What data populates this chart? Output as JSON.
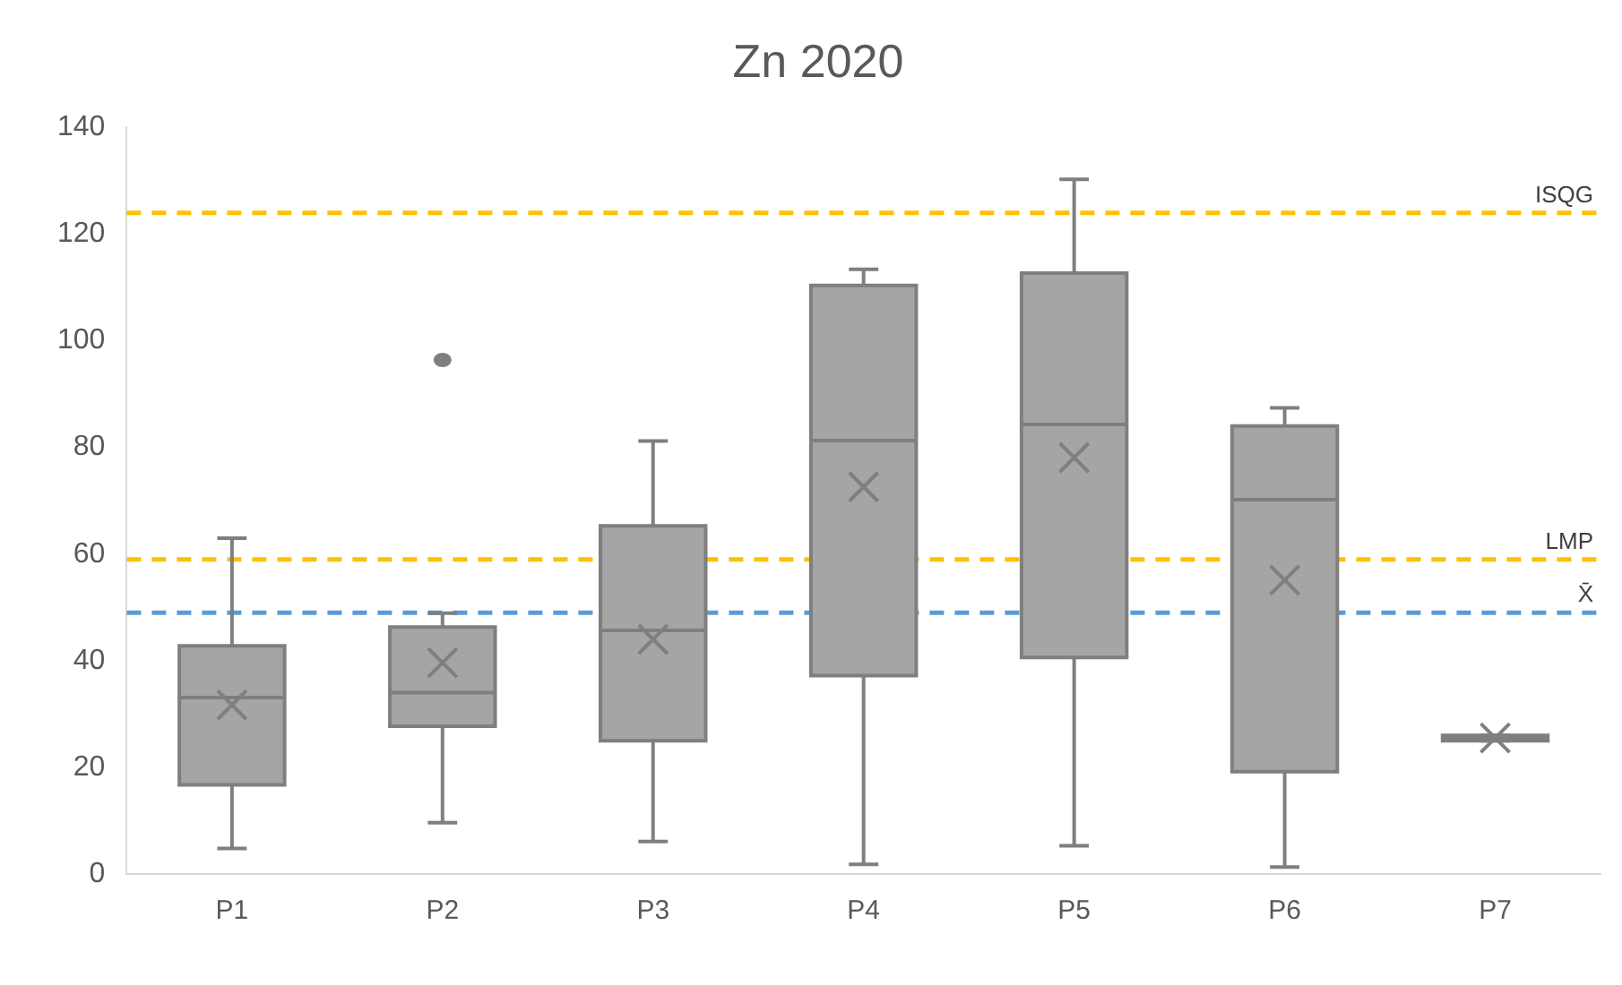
{
  "chart_data": {
    "type": "box",
    "title": "Zn 2020",
    "categories": [
      "P1",
      "P2",
      "P3",
      "P4",
      "P5",
      "P6",
      "P7"
    ],
    "color": "#a5a5a5",
    "boxes": [
      {
        "low": 4.8,
        "q1": 16.7,
        "median": 33.1,
        "q3": 42.8,
        "high": 63,
        "mean": 31.7
      },
      {
        "low": 9.6,
        "q1": 27.7,
        "median": 34,
        "q3": 46.3,
        "high": 48.9,
        "mean": 39.6,
        "outliers": [
          96.4
        ]
      },
      {
        "low": 6.1,
        "q1": 25,
        "median": 45.7,
        "q3": 65.3,
        "high": 81.2,
        "mean": 44
      },
      {
        "low": 1.8,
        "q1": 37.2,
        "median": 81.3,
        "q3": 110.4,
        "high": 113.4,
        "mean": 72.6
      },
      {
        "low": 5.3,
        "q1": 40.6,
        "median": 84.3,
        "q3": 112.7,
        "high": 130.3,
        "mean": 78.1
      },
      {
        "low": 1.3,
        "q1": 19.2,
        "median": 70.2,
        "q3": 84,
        "high": 87.4,
        "mean": 55.1
      },
      {
        "low": 25,
        "q1": 25,
        "median": 25.5,
        "q3": 26,
        "high": 26,
        "mean": 25.5
      }
    ],
    "ylim": [
      0,
      140
    ],
    "yticks": [
      0,
      20,
      40,
      60,
      80,
      100,
      120,
      140
    ],
    "grid": false,
    "legend": false,
    "ref_lines": [
      {
        "axis": "y",
        "value": 124,
        "label": "ISQG",
        "color": "#ffc000",
        "line_style": "dashed"
      },
      {
        "axis": "y",
        "value": 59,
        "label": "LMP",
        "color": "#ffc000",
        "line_style": "dashed"
      },
      {
        "axis": "y",
        "value": 49,
        "label": "X̄",
        "color": "#5b9bd5",
        "line_style": "dashed"
      }
    ]
  }
}
